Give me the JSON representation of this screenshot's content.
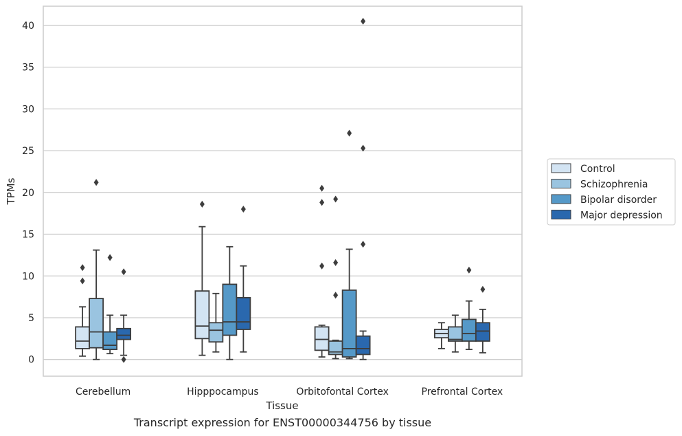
{
  "caption": "Transcript expression for ENST00000344756 by tissue",
  "chart_data": {
    "type": "box",
    "xlabel": "Tissue",
    "ylabel": "TPMs",
    "categories": [
      "Cerebellum",
      "Hipppocampus",
      "Orbitofontal Cortex",
      "Prefrontal Cortex"
    ],
    "ylim": [
      -2,
      42.3
    ],
    "yticks": [
      0,
      5,
      10,
      15,
      20,
      25,
      30,
      35,
      40
    ],
    "grid": "horizontal",
    "legend_position": "right",
    "series": [
      {
        "name": "Control",
        "color": "#d3e4f3",
        "boxes": [
          {
            "whislo": 0.4,
            "q1": 1.3,
            "med": 2.2,
            "q3": 3.9,
            "whishi": 6.3,
            "fliers": [
              9.4,
              11.0
            ]
          },
          {
            "whislo": 0.5,
            "q1": 2.5,
            "med": 4.0,
            "q3": 8.2,
            "whishi": 15.9,
            "fliers": [
              18.6
            ]
          },
          {
            "whislo": 0.3,
            "q1": 1.1,
            "med": 2.4,
            "q3": 3.9,
            "whishi": 4.1,
            "fliers": [
              11.2,
              18.8,
              20.5
            ]
          },
          {
            "whislo": 1.3,
            "q1": 2.6,
            "med": 3.1,
            "q3": 3.6,
            "whishi": 4.4,
            "fliers": []
          }
        ]
      },
      {
        "name": "Schizophrenia",
        "color": "#9ac4e0",
        "boxes": [
          {
            "whislo": 0.0,
            "q1": 1.4,
            "med": 3.3,
            "q3": 7.3,
            "whishi": 13.1,
            "fliers": [
              21.2
            ]
          },
          {
            "whislo": 0.9,
            "q1": 2.1,
            "med": 3.5,
            "q3": 4.4,
            "whishi": 7.9,
            "fliers": []
          },
          {
            "whislo": 0.1,
            "q1": 0.6,
            "med": 0.9,
            "q3": 2.2,
            "whishi": 2.3,
            "fliers": [
              7.7,
              11.6,
              19.2
            ]
          },
          {
            "whislo": 0.9,
            "q1": 2.2,
            "med": 2.4,
            "q3": 3.9,
            "whishi": 5.3,
            "fliers": []
          }
        ]
      },
      {
        "name": "Bipolar disorder",
        "color": "#5599c8",
        "boxes": [
          {
            "whislo": 0.7,
            "q1": 1.2,
            "med": 1.7,
            "q3": 3.3,
            "whishi": 5.3,
            "fliers": [
              12.2
            ]
          },
          {
            "whislo": 0.0,
            "q1": 2.9,
            "med": 4.5,
            "q3": 9.0,
            "whishi": 13.5,
            "fliers": []
          },
          {
            "whislo": 0.1,
            "q1": 0.3,
            "med": 1.3,
            "q3": 8.3,
            "whishi": 13.2,
            "fliers": [
              27.1
            ]
          },
          {
            "whislo": 1.2,
            "q1": 2.2,
            "med": 3.1,
            "q3": 4.8,
            "whishi": 7.0,
            "fliers": [
              10.7
            ]
          }
        ]
      },
      {
        "name": "Major depression",
        "color": "#2a68ae",
        "boxes": [
          {
            "whislo": 0.5,
            "q1": 2.4,
            "med": 2.9,
            "q3": 3.7,
            "whishi": 5.3,
            "fliers": [
              0.0,
              10.5
            ]
          },
          {
            "whislo": 0.9,
            "q1": 3.6,
            "med": 4.5,
            "q3": 7.4,
            "whishi": 11.2,
            "fliers": [
              18.0
            ]
          },
          {
            "whislo": 0.0,
            "q1": 0.6,
            "med": 1.3,
            "q3": 2.8,
            "whishi": 3.4,
            "fliers": [
              13.8,
              25.3,
              40.5
            ]
          },
          {
            "whislo": 0.8,
            "q1": 2.2,
            "med": 3.4,
            "q3": 4.4,
            "whishi": 6.0,
            "fliers": [
              8.4
            ]
          }
        ]
      }
    ]
  }
}
